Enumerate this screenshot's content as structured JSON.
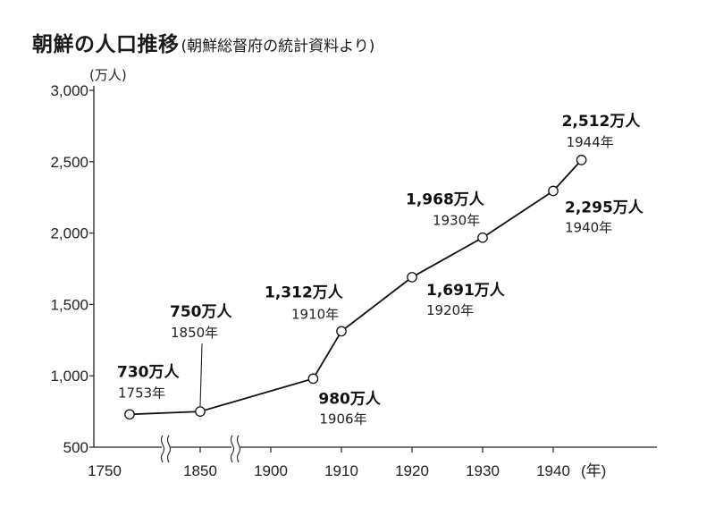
{
  "header": {
    "title": "朝鮮の人口推移",
    "subtitle": "(朝鮮総督府の統計資料より)"
  },
  "chart_data": {
    "type": "line",
    "title": "朝鮮の人口推移",
    "subtitle": "(朝鮮総督府の統計資料より)",
    "y_unit": "(万人)",
    "x_unit": "(年)",
    "ylim": [
      500,
      3000
    ],
    "y_ticks": [
      "3,000",
      "2,500",
      "2,000",
      "1,500",
      "1,000",
      "500"
    ],
    "x_ticks": [
      "1750",
      "1850",
      "1900",
      "1910",
      "1920",
      "1930",
      "1940"
    ],
    "x_axis_breaks": "1750–1850 and 1850–1900 (compressed)",
    "grid": false,
    "line_color": "#111111",
    "points": [
      {
        "year": 1753,
        "value": 730,
        "value_label": "730万人",
        "year_label": "1753年"
      },
      {
        "year": 1850,
        "value": 750,
        "value_label": "750万人",
        "year_label": "1850年"
      },
      {
        "year": 1906,
        "value": 980,
        "value_label": "980万人",
        "year_label": "1906年"
      },
      {
        "year": 1910,
        "value": 1312,
        "value_label": "1,312万人",
        "year_label": "1910年"
      },
      {
        "year": 1920,
        "value": 1691,
        "value_label": "1,691万人",
        "year_label": "1920年"
      },
      {
        "year": 1930,
        "value": 1968,
        "value_label": "1,968万人",
        "year_label": "1930年"
      },
      {
        "year": 1940,
        "value": 2295,
        "value_label": "2,295万人",
        "year_label": "1940年"
      },
      {
        "year": 1944,
        "value": 2512,
        "value_label": "2,512万人",
        "year_label": "1944年"
      }
    ]
  }
}
